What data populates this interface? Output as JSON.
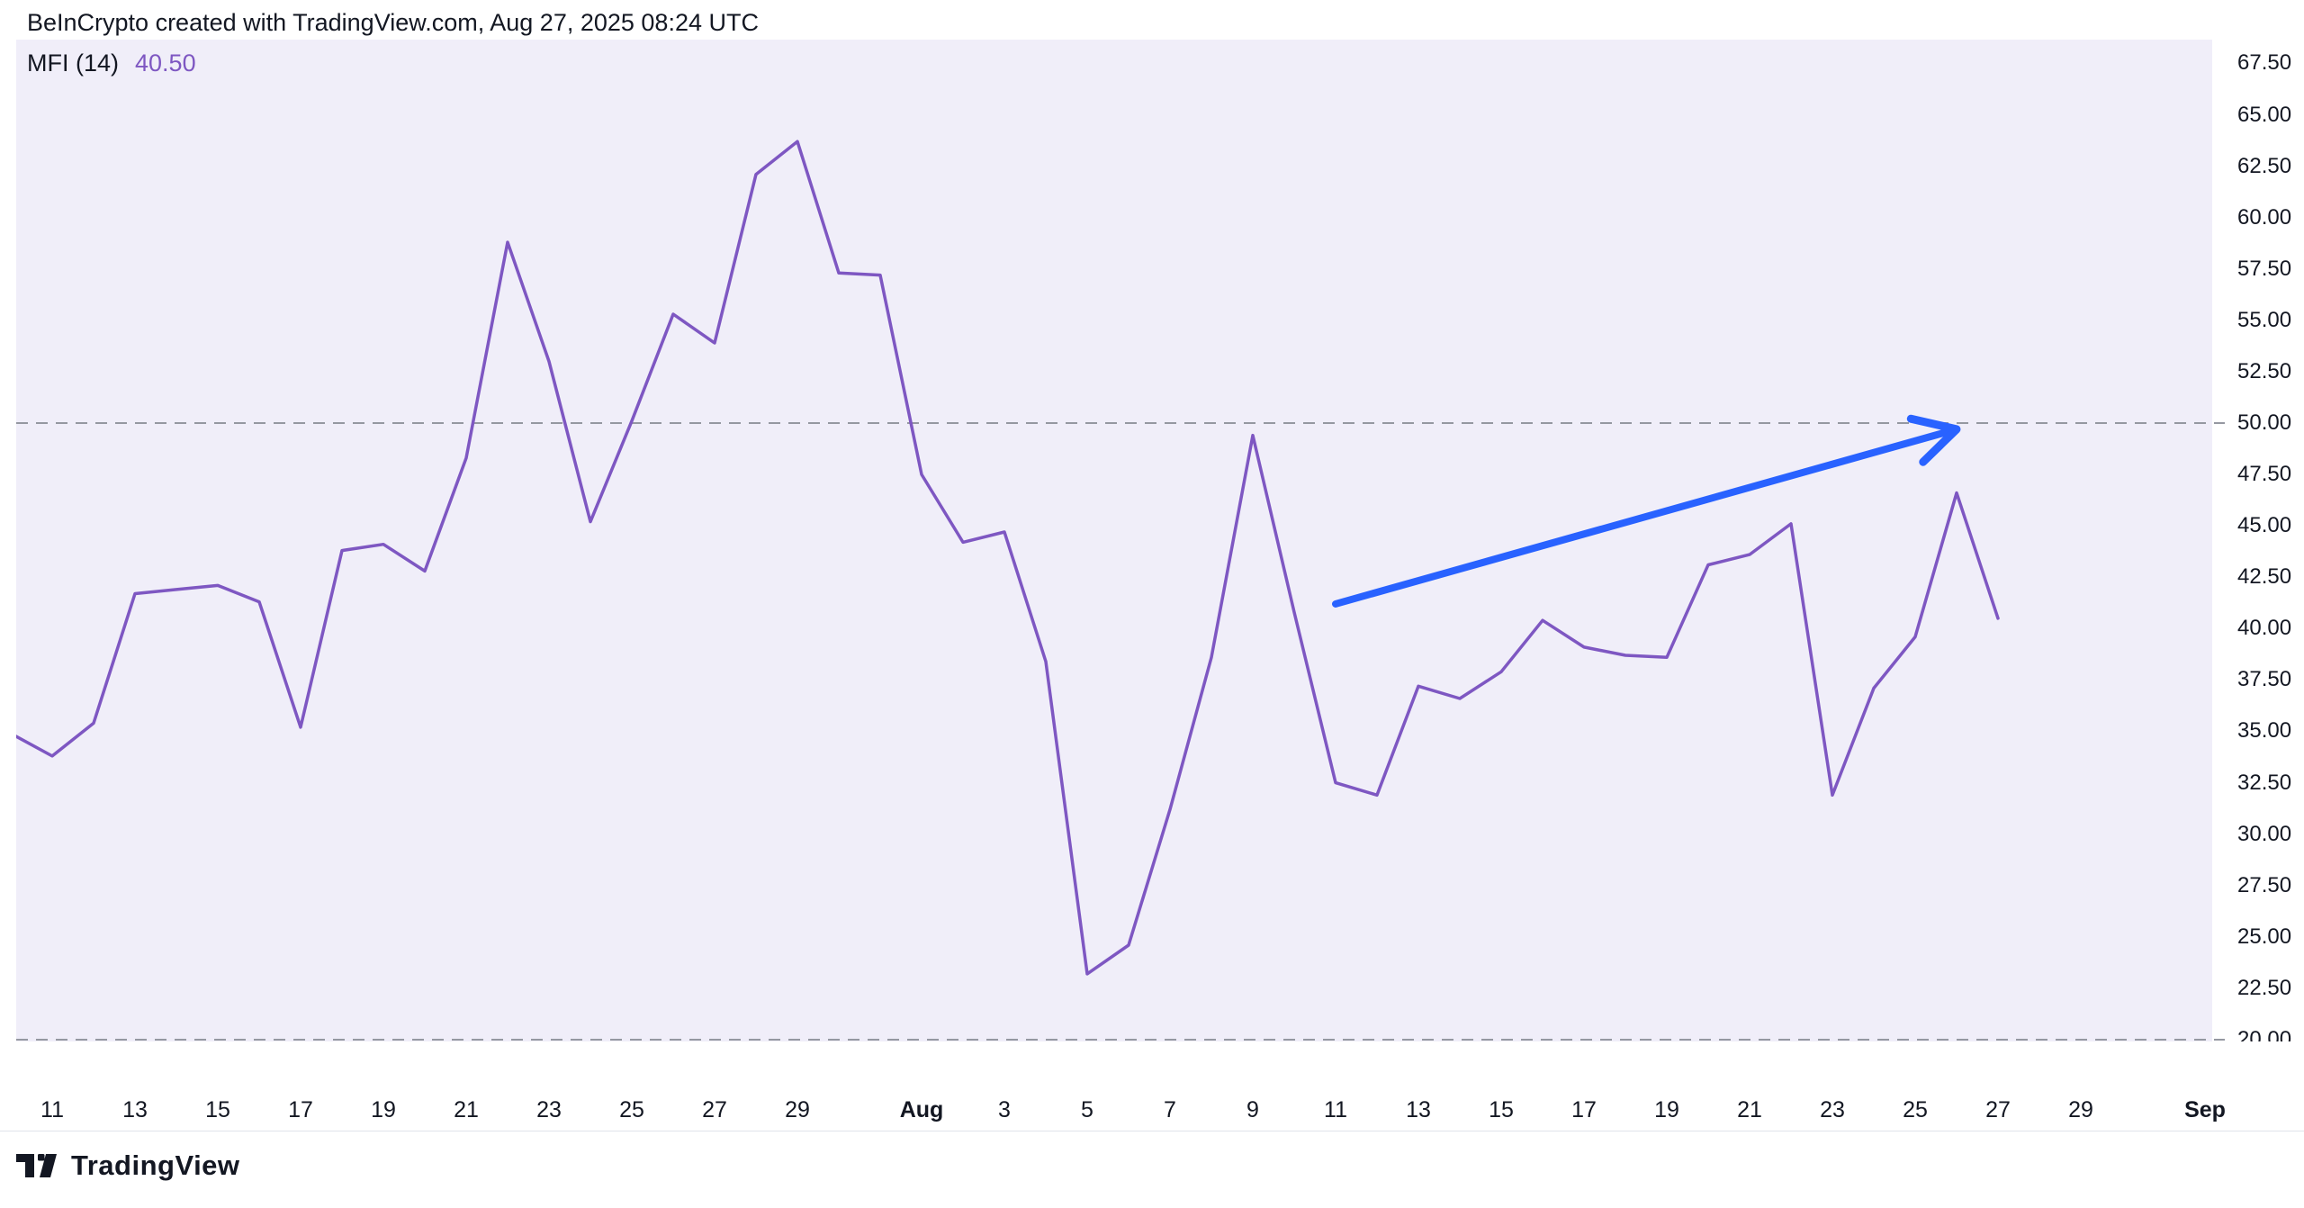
{
  "header": {
    "attribution": "BeInCrypto created with TradingView.com, Aug 27, 2025 08:24 UTC"
  },
  "indicator": {
    "name_label": "MFI (14)",
    "value": "40.50"
  },
  "chart_data": {
    "type": "line",
    "title": "MFI (14)",
    "x": [
      "Jul 10",
      "Jul 11",
      "Jul 12",
      "Jul 13",
      "Jul 14",
      "Jul 15",
      "Jul 16",
      "Jul 17",
      "Jul 18",
      "Jul 19",
      "Jul 20",
      "Jul 21",
      "Jul 22",
      "Jul 23",
      "Jul 24",
      "Jul 25",
      "Jul 26",
      "Jul 27",
      "Jul 28",
      "Jul 29",
      "Jul 30",
      "Jul 31",
      "Aug 1",
      "Aug 2",
      "Aug 3",
      "Aug 4",
      "Aug 5",
      "Aug 6",
      "Aug 7",
      "Aug 8",
      "Aug 9",
      "Aug 10",
      "Aug 11",
      "Aug 12",
      "Aug 13",
      "Aug 14",
      "Aug 15",
      "Aug 16",
      "Aug 17",
      "Aug 18",
      "Aug 19",
      "Aug 20",
      "Aug 21",
      "Aug 22",
      "Aug 23",
      "Aug 24",
      "Aug 25",
      "Aug 26",
      "Aug 27"
    ],
    "values": [
      34.9,
      33.8,
      35.4,
      41.7,
      41.9,
      42.1,
      41.3,
      35.2,
      43.8,
      44.1,
      42.8,
      48.3,
      58.8,
      53.0,
      45.2,
      50.1,
      55.3,
      53.9,
      62.1,
      63.7,
      57.3,
      57.2,
      47.5,
      44.2,
      44.7,
      38.4,
      23.2,
      24.6,
      31.2,
      38.6,
      49.4,
      40.8,
      32.5,
      31.9,
      37.2,
      36.6,
      37.9,
      40.4,
      39.1,
      38.7,
      38.6,
      43.1,
      43.6,
      45.1,
      31.9,
      37.1,
      39.6,
      46.6,
      40.5
    ],
    "series_name": "MFI (14)",
    "ylim": [
      19.9,
      68.7
    ],
    "grid": "off",
    "y_ticks": [
      "67.50",
      "65.00",
      "62.50",
      "60.00",
      "57.50",
      "55.00",
      "52.50",
      "50.00",
      "47.50",
      "45.00",
      "42.50",
      "40.00",
      "37.50",
      "35.00",
      "32.50",
      "30.00",
      "27.50",
      "25.00",
      "22.50",
      "20.00"
    ],
    "x_ticks": [
      {
        "label": "11",
        "t": 1
      },
      {
        "label": "13",
        "t": 3
      },
      {
        "label": "15",
        "t": 5
      },
      {
        "label": "17",
        "t": 7
      },
      {
        "label": "19",
        "t": 9
      },
      {
        "label": "21",
        "t": 11
      },
      {
        "label": "23",
        "t": 13
      },
      {
        "label": "25",
        "t": 15
      },
      {
        "label": "27",
        "t": 17
      },
      {
        "label": "29",
        "t": 19
      },
      {
        "label": "Aug",
        "t": 22,
        "bold": true
      },
      {
        "label": "3",
        "t": 24
      },
      {
        "label": "5",
        "t": 26
      },
      {
        "label": "7",
        "t": 28
      },
      {
        "label": "9",
        "t": 30
      },
      {
        "label": "11",
        "t": 32
      },
      {
        "label": "13",
        "t": 34
      },
      {
        "label": "15",
        "t": 36
      },
      {
        "label": "17",
        "t": 38
      },
      {
        "label": "19",
        "t": 40
      },
      {
        "label": "21",
        "t": 42
      },
      {
        "label": "23",
        "t": 44
      },
      {
        "label": "25",
        "t": 46
      },
      {
        "label": "27",
        "t": 48
      },
      {
        "label": "29",
        "t": 50
      },
      {
        "label": "Sep",
        "t": 53,
        "bold": true
      }
    ],
    "levels": [
      {
        "value": 50,
        "style": "dashed"
      },
      {
        "value": 20,
        "style": "dashed"
      }
    ],
    "annotations": [
      {
        "type": "arrow",
        "from": {
          "date": "Aug 11",
          "t": 32,
          "value": 41.2
        },
        "to": {
          "date": "Aug 26",
          "t": 47,
          "value": 49.7
        }
      }
    ]
  },
  "colors": {
    "line": "#7E57C2",
    "indicator_value": "#7E57C2",
    "arrow": "#2962FF",
    "plot_bg": "#F0EEF9",
    "dashed_level": "#9598A1",
    "text": "#131722"
  },
  "footer": {
    "logo_text": "TradingView"
  }
}
